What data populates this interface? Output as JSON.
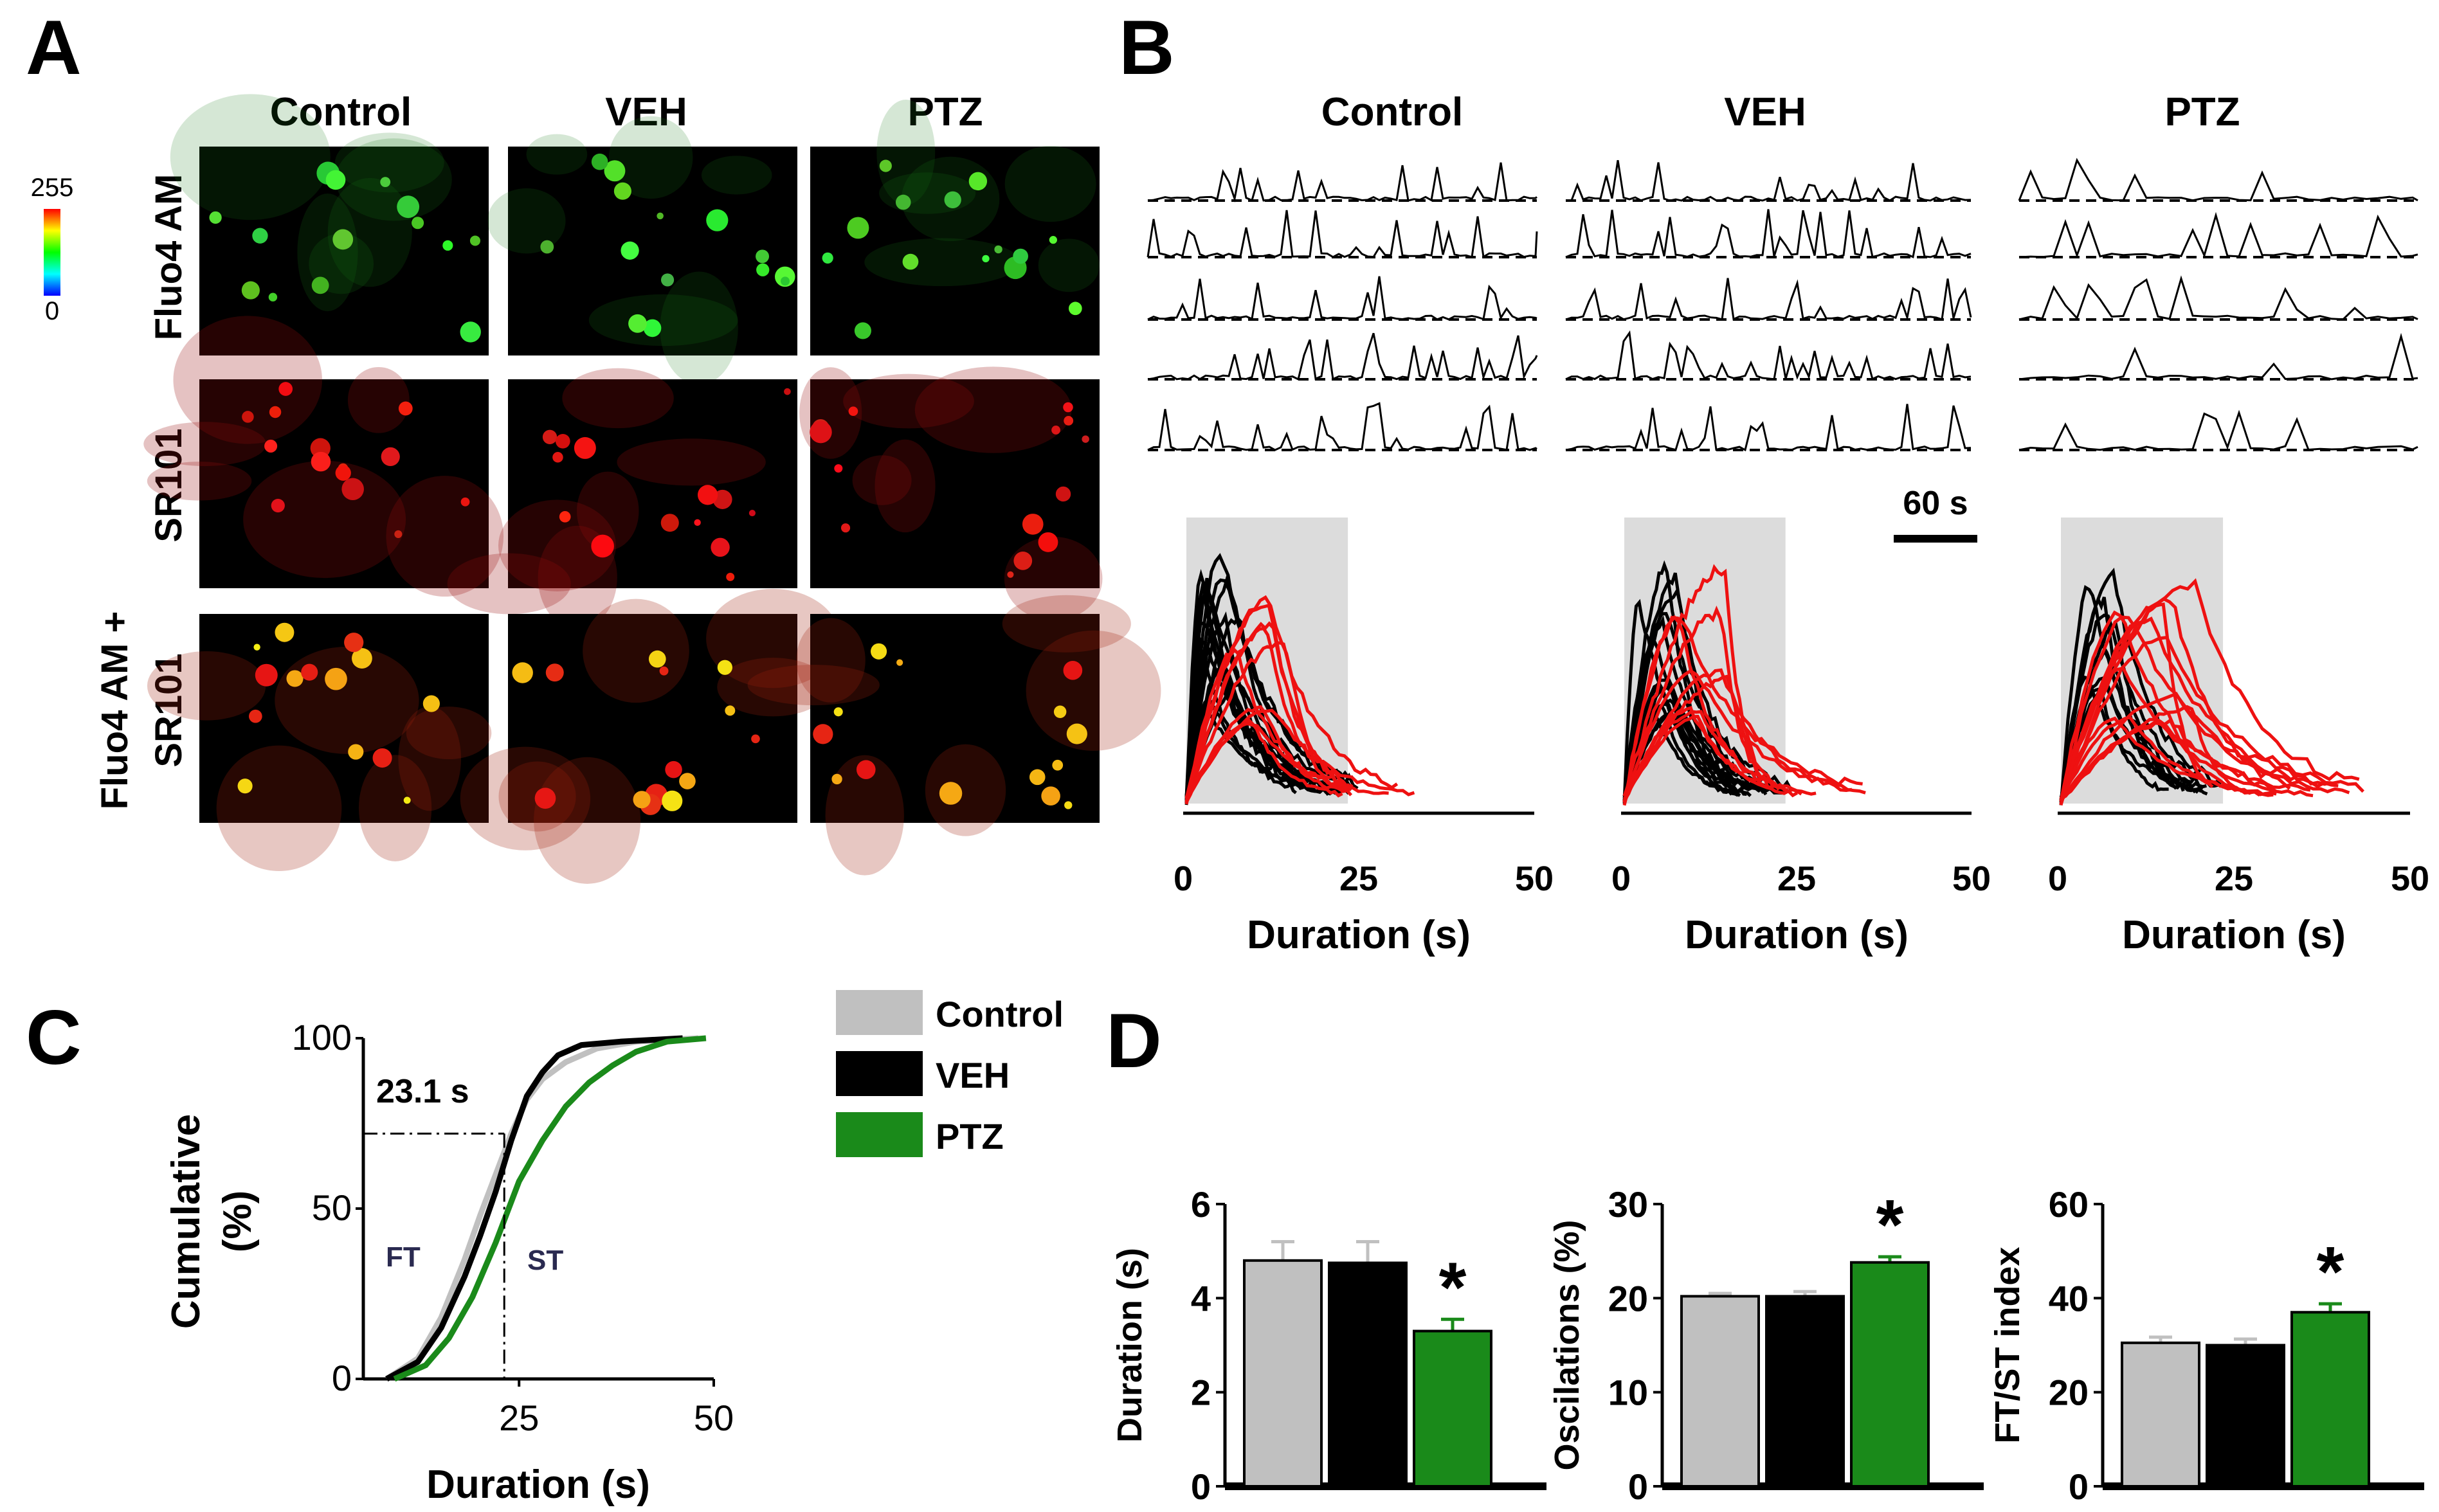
{
  "panels": {
    "A": {
      "letter": "A",
      "columns": [
        "Control",
        "VEH",
        "PTZ"
      ],
      "rows": [
        "Fluo4 AM",
        "SR101",
        "Fluo4 AM +",
        "SR101"
      ],
      "colorbar": {
        "max": "255",
        "min": "0"
      }
    },
    "B": {
      "letter": "B",
      "columns": [
        "Control",
        "VEH",
        "PTZ"
      ],
      "scalebar": "60 s",
      "xticks": [
        "0",
        "25",
        "50"
      ],
      "xlabel": "Duration (s)"
    },
    "C": {
      "letter": "C"
    },
    "D": {
      "letter": "D"
    }
  },
  "colors": {
    "control": "#c0c0c0",
    "veh": "#000000",
    "ptz": "#1a8a1a",
    "fast": "#000000",
    "slow": "#ee1111",
    "shade": "#dcdcdc"
  },
  "chart_data": [
    {
      "id": "C",
      "type": "line",
      "title": "",
      "xlabel": "Duration (s)",
      "ylabel": "Cumulative (%)",
      "xlim": [
        5,
        50
      ],
      "ylim": [
        0,
        100
      ],
      "xticks": [
        "25",
        "50"
      ],
      "yticks": [
        "0",
        "50",
        "100"
      ],
      "annotation": "23.1 s",
      "regions": [
        "FT",
        "ST"
      ],
      "legend": [
        "Control",
        "VEH",
        "PTZ"
      ],
      "series": [
        {
          "name": "Control",
          "x": [
            8,
            12,
            15,
            18,
            20,
            22,
            24,
            26,
            28,
            31,
            35,
            40,
            48
          ],
          "y": [
            0,
            6,
            18,
            35,
            48,
            60,
            72,
            82,
            88,
            93,
            97,
            99,
            100
          ]
        },
        {
          "name": "VEH",
          "x": [
            8,
            12,
            15,
            18,
            20,
            22,
            24,
            26,
            28,
            30,
            33,
            38,
            46
          ],
          "y": [
            0,
            5,
            15,
            30,
            42,
            55,
            70,
            83,
            90,
            95,
            98,
            99,
            100
          ]
        },
        {
          "name": "PTZ",
          "x": [
            9,
            13,
            16,
            19,
            22,
            25,
            28,
            31,
            34,
            37,
            40,
            44,
            49
          ],
          "y": [
            0,
            4,
            12,
            24,
            40,
            58,
            70,
            80,
            87,
            92,
            96,
            99,
            100
          ]
        }
      ]
    },
    {
      "id": "D1",
      "type": "bar",
      "categories": [
        "Control",
        "VEH",
        "PTZ"
      ],
      "values": [
        4.8,
        4.75,
        3.3
      ],
      "errors": [
        0.4,
        0.45,
        0.25
      ],
      "significance": [
        "",
        "",
        "*"
      ],
      "ylabel": "Duration (s)",
      "ylim": [
        0,
        6
      ],
      "yticks": [
        "0",
        "2",
        "4",
        "6"
      ]
    },
    {
      "id": "D2",
      "type": "bar",
      "categories": [
        "Control",
        "VEH",
        "PTZ"
      ],
      "values": [
        20.2,
        20.2,
        23.8
      ],
      "errors": [
        0.3,
        0.5,
        0.6
      ],
      "significance": [
        "",
        "",
        "*"
      ],
      "ylabel": "Oscilations (%)",
      "ylim": [
        0,
        30
      ],
      "yticks": [
        "0",
        "10",
        "20",
        "30"
      ]
    },
    {
      "id": "D3",
      "type": "bar",
      "categories": [
        "Control",
        "VEH",
        "PTZ"
      ],
      "values": [
        30.5,
        30,
        37
      ],
      "errors": [
        1.2,
        1.3,
        1.8
      ],
      "significance": [
        "",
        "",
        "*"
      ],
      "ylabel": "FT/ST index",
      "ylim": [
        0,
        60
      ],
      "yticks": [
        "0",
        "20",
        "40",
        "60"
      ]
    }
  ]
}
